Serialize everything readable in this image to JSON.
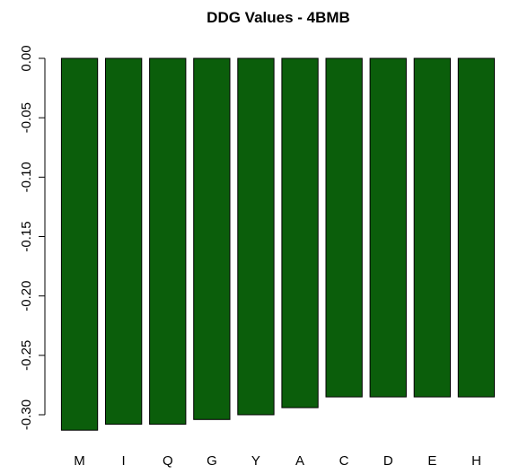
{
  "chart_data": {
    "type": "bar",
    "title": "DDG Values - 4BMB",
    "xlabel": "",
    "ylabel": "",
    "categories": [
      "M",
      "I",
      "Q",
      "G",
      "Y",
      "A",
      "C",
      "D",
      "E",
      "H"
    ],
    "values": [
      -0.313,
      -0.308,
      -0.308,
      -0.304,
      -0.3,
      -0.294,
      -0.285,
      -0.285,
      -0.285,
      -0.285
    ],
    "ylim": [
      -0.3,
      0.0
    ],
    "yticks": [
      "0.00",
      "-0.05",
      "-0.10",
      "-0.15",
      "-0.20",
      "-0.25",
      "-0.30"
    ],
    "bar_color": "#0b5e0b",
    "grid": false,
    "legend": "none"
  }
}
